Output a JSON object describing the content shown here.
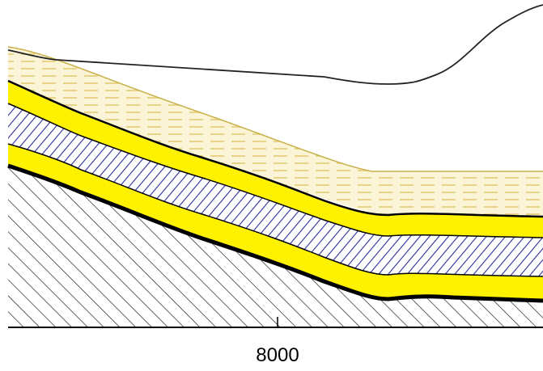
{
  "axis": {
    "tick_label": "8000"
  }
}
